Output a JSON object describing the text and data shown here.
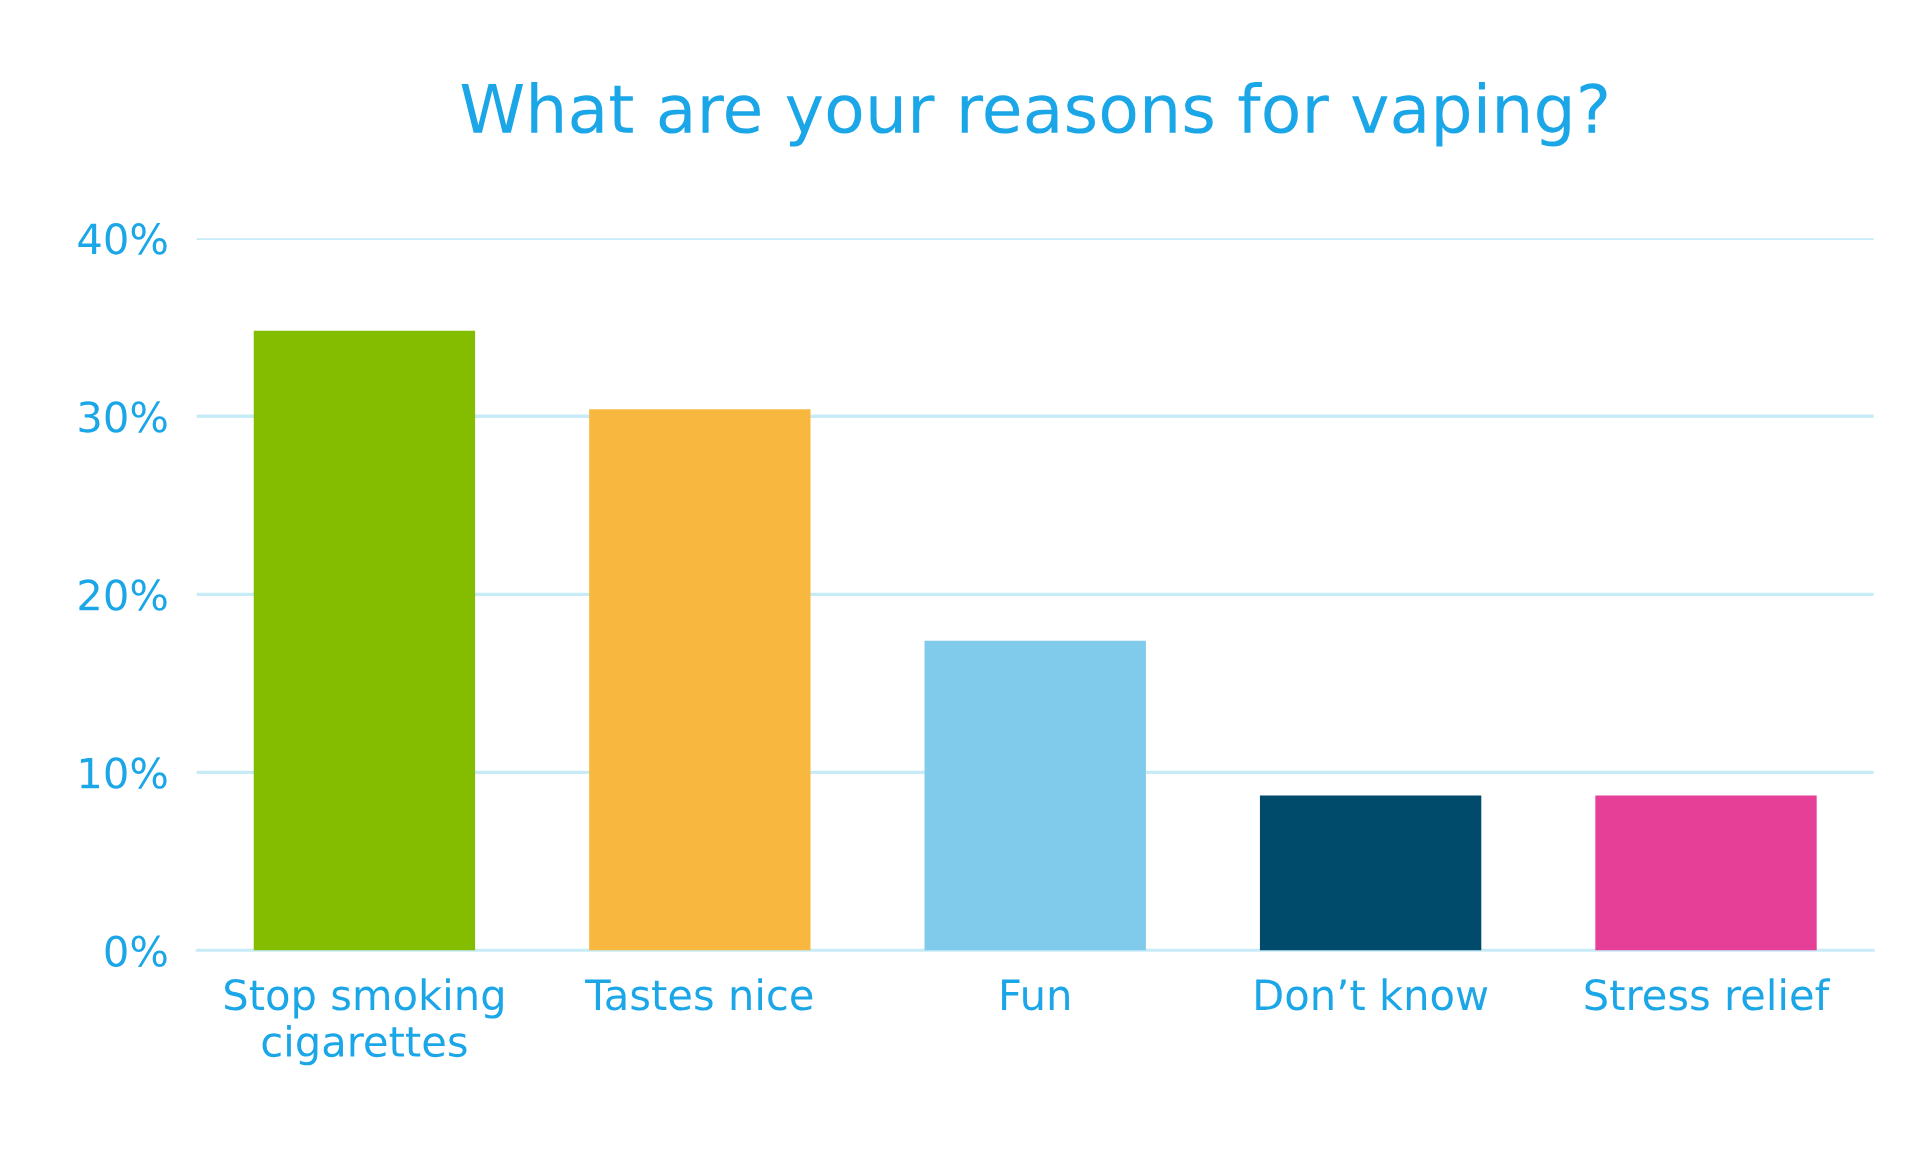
{
  "chart_data": {
    "type": "bar",
    "title": "What are your reasons for vaping?",
    "categories": [
      "Stop smoking\ncigarettes",
      "Tastes nice",
      "Fun",
      "Don’t know",
      "Stress relief"
    ],
    "values": [
      34.8,
      30.4,
      17.4,
      8.7,
      8.7
    ],
    "colors": [
      "#84bd00",
      "#f8b83f",
      "#80cbeb",
      "#004b6b",
      "#e63f97"
    ],
    "ylim": [
      0,
      40
    ],
    "yticks": [
      {
        "value": 0,
        "label": "0%"
      },
      {
        "value": 10,
        "label": "10%"
      },
      {
        "value": 20,
        "label": "20%"
      },
      {
        "value": 30,
        "label": "30%"
      },
      {
        "value": 40,
        "label": "40%"
      }
    ],
    "grid": "y"
  }
}
